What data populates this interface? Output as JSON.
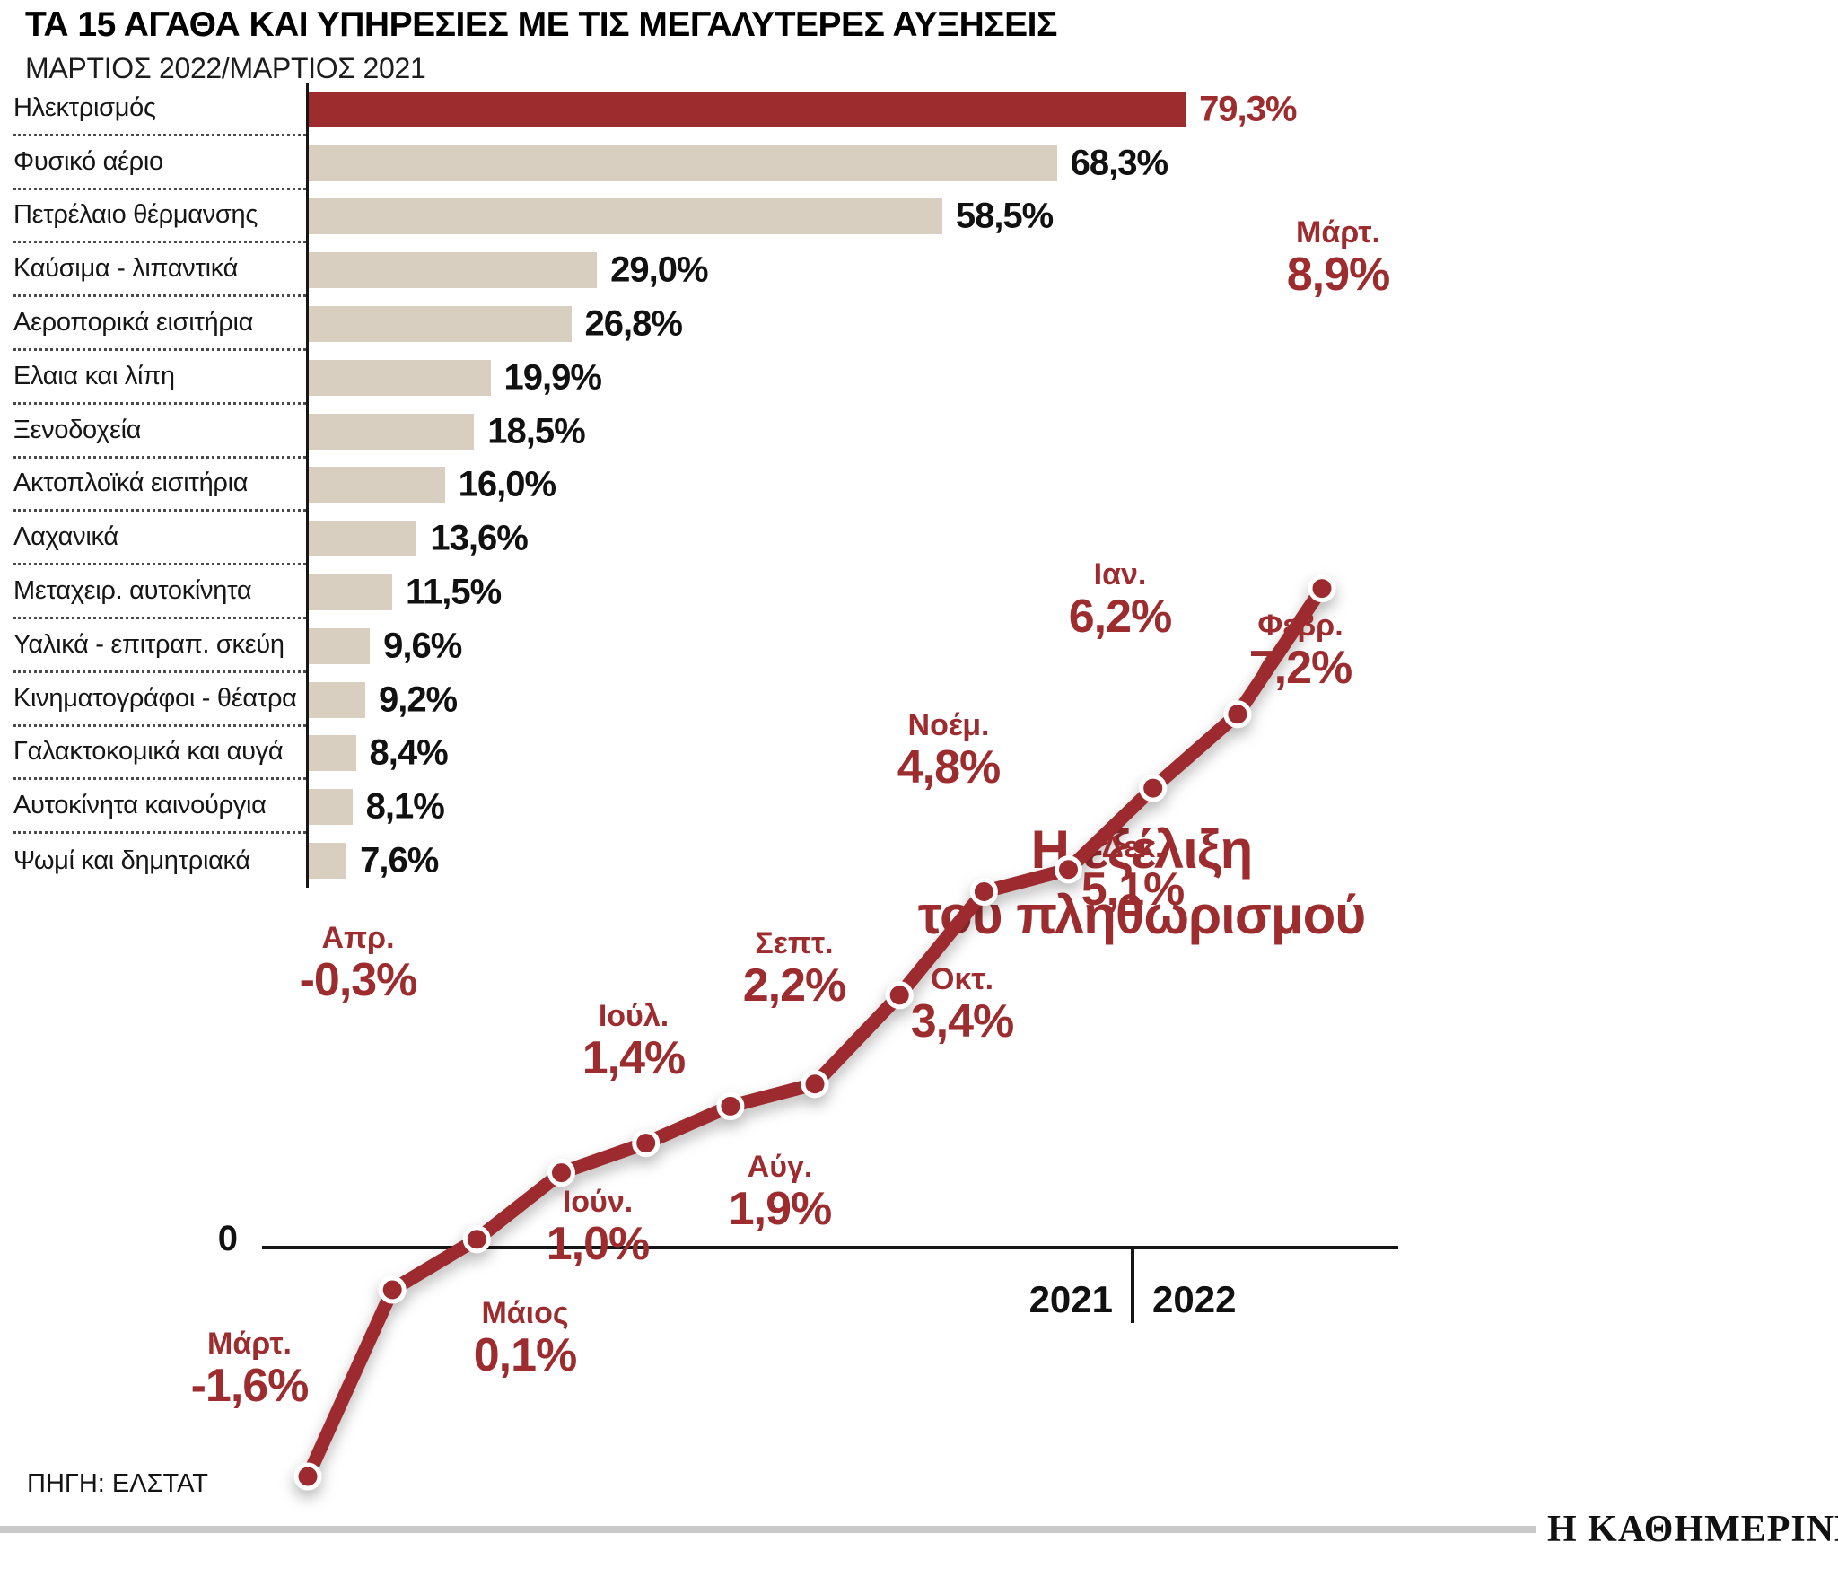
{
  "header": {
    "title": "ΤΑ 15 ΑΓΑΘΑ ΚΑΙ ΥΠΗΡΕΣΙΕΣ ΜΕ ΤΙΣ ΜΕΓΑΛΥΤΕΡΕΣ ΑΥΞΗΣΕΙΣ",
    "subtitle": "ΜΑΡΤΙΟΣ 2022/ΜΑΡΤΙΟΣ 2021"
  },
  "footer": {
    "source": "ΠΗΓΗ: ΕΛΣΤΑΤ",
    "brand": "Η ΚΑΘΗΜΕΡΙΝΗ"
  },
  "colors": {
    "accent_red": "#9d2c2f",
    "bar_beige": "#d9cfc1",
    "text_black": "#161616"
  },
  "chart_data": [
    {
      "type": "bar",
      "orientation": "horizontal",
      "title": "ΤΑ 15 ΑΓΑΘΑ ΚΑΙ ΥΠΗΡΕΣΙΕΣ ΜΕ ΤΙΣ ΜΕΓΑΛΥΤΕΡΕΣ ΑΥΞΗΣΕΙΣ",
      "subtitle": "ΜΑΡΤΙΟΣ 2022/ΜΑΡΤΙΟΣ 2021",
      "unit": "%",
      "grid": false,
      "categories": [
        "Ηλεκτρισμός",
        "Φυσικό αέριο",
        "Πετρέλαιο θέρμανσης",
        "Καύσιμα - λιπαντικά",
        "Αεροπορικά εισιτήρια",
        "Ελαια και λίπη",
        "Ξενοδοχεία",
        "Ακτοπλοϊκά εισιτήρια",
        "Λαχανικά",
        "Μεταχειρ. αυτοκίνητα",
        "Υαλικά - επιτραπ. σκεύη",
        "Κινηματογράφοι - θέατρα",
        "Γαλακτοκομικά και αυγά",
        "Αυτοκίνητα καινούργια",
        "Ψωμί και δημητριακά"
      ],
      "values": [
        79.3,
        68.3,
        58.5,
        29.0,
        26.8,
        19.9,
        18.5,
        16.0,
        13.6,
        11.5,
        9.6,
        9.2,
        8.4,
        8.1,
        7.6
      ],
      "value_labels": [
        "79,3%",
        "68,3%",
        "58,5%",
        "29,0%",
        "26,8%",
        "19,9%",
        "18,5%",
        "16,0%",
        "13,6%",
        "11,5%",
        "9,6%",
        "9,2%",
        "8,4%",
        "8,1%",
        "7,6%"
      ],
      "highlight_index": 0
    },
    {
      "type": "line",
      "title": "Η εξέλιξη του πληθωρισμού",
      "annotation": [
        "Η εξέλιξη",
        "του πληθωρισμού"
      ],
      "unit": "%",
      "grid": false,
      "ylim": [
        -2,
        9
      ],
      "baseline_label": "0",
      "year_left": "2021",
      "year_right": "2022",
      "x": [
        "Μάρτ.",
        "Απρ.",
        "Μάιος",
        "Ιούν.",
        "Ιούλ.",
        "Αύγ.",
        "Σεπτ.",
        "Οκτ.",
        "Νοέμ.",
        "Δεκ.",
        "Ιαν.",
        "Φεβρ.",
        "Μάρτ."
      ],
      "values": [
        -1.6,
        -0.3,
        0.1,
        1.0,
        1.4,
        1.9,
        2.2,
        3.4,
        4.8,
        5.1,
        6.2,
        7.2,
        8.9
      ],
      "value_labels": [
        "-1,6%",
        "-0,3%",
        "0,1%",
        "1,0%",
        "1,4%",
        "1,9%",
        "2,2%",
        "3,4%",
        "4,8%",
        "5,1%",
        "6,2%",
        "7,2%",
        "8,9%"
      ]
    }
  ]
}
